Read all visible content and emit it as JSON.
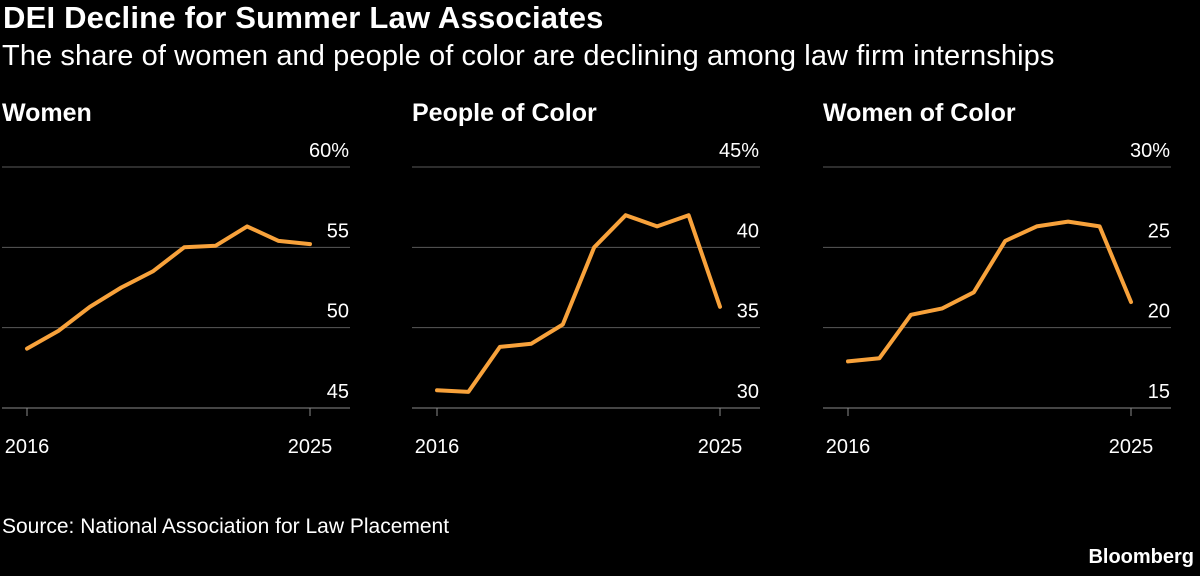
{
  "header": {
    "title": "DEI Decline for Summer Law Associates",
    "subtitle": "The share of women and people of color are declining among law firm internships"
  },
  "footer": {
    "source": "Source: National Association for Law Placement",
    "brand": "Bloomberg"
  },
  "colors": {
    "line": "#F8A23B",
    "background": "#000000",
    "grid": "#5a5a5a"
  },
  "chart_data": [
    {
      "type": "line",
      "title": "Women",
      "x": [
        2016,
        2017,
        2018,
        2019,
        2020,
        2021,
        2022,
        2023,
        2024,
        2025
      ],
      "values": [
        48.7,
        49.8,
        51.3,
        52.5,
        53.5,
        55.0,
        55.1,
        56.3,
        55.4,
        55.2
      ],
      "ylim": [
        45,
        60
      ],
      "yticks": [
        45,
        50,
        55,
        60
      ],
      "ytick_labels": [
        "45",
        "50",
        "55",
        "60%"
      ],
      "xticks": [
        2016,
        2025
      ],
      "xtick_labels": [
        "2016",
        "2025"
      ]
    },
    {
      "type": "line",
      "title": "People of Color",
      "x": [
        2016,
        2017,
        2018,
        2019,
        2020,
        2021,
        2022,
        2023,
        2024,
        2025
      ],
      "values": [
        31.1,
        31.0,
        33.8,
        34.0,
        35.2,
        40.0,
        42.0,
        41.3,
        42.0,
        36.3
      ],
      "ylim": [
        30,
        45
      ],
      "yticks": [
        30,
        35,
        40,
        45
      ],
      "ytick_labels": [
        "30",
        "35",
        "40",
        "45%"
      ],
      "xticks": [
        2016,
        2025
      ],
      "xtick_labels": [
        "2016",
        "2025"
      ]
    },
    {
      "type": "line",
      "title": "Women of Color",
      "x": [
        2016,
        2017,
        2018,
        2019,
        2020,
        2021,
        2022,
        2023,
        2024,
        2025
      ],
      "values": [
        17.9,
        18.1,
        20.8,
        21.2,
        22.2,
        25.4,
        26.3,
        26.6,
        26.3,
        21.6
      ],
      "ylim": [
        15,
        30
      ],
      "yticks": [
        15,
        20,
        25,
        30
      ],
      "ytick_labels": [
        "15",
        "20",
        "25",
        "30%"
      ],
      "xticks": [
        2016,
        2025
      ],
      "xtick_labels": [
        "2016",
        "2025"
      ]
    }
  ]
}
